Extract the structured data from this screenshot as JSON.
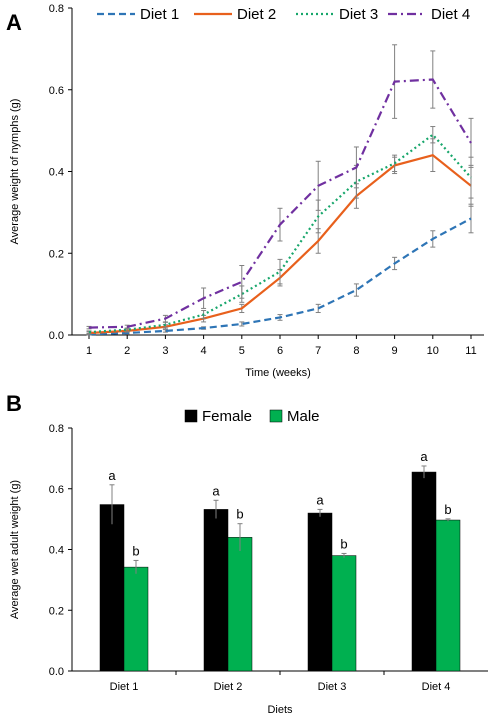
{
  "panels": {
    "a_label": "A",
    "b_label": "B"
  },
  "chart_data": [
    {
      "type": "line",
      "panel": "A",
      "xlabel": "Time (weeks)",
      "ylabel": "Average weight of nymphs (g)",
      "x": [
        1,
        2,
        3,
        4,
        5,
        6,
        7,
        8,
        9,
        10,
        11
      ],
      "xlim": [
        1,
        11
      ],
      "ylim": [
        0,
        0.8
      ],
      "yticks": [
        "0.0",
        "0.2",
        "0.4",
        "0.6",
        "0.8"
      ],
      "grid": false,
      "legend": "top",
      "series": [
        {
          "name": "Diet 1",
          "color": "#2E75B6",
          "style": "dashed",
          "values": [
            0.002,
            0.005,
            0.01,
            0.017,
            0.027,
            0.043,
            0.065,
            0.11,
            0.175,
            0.235,
            0.285
          ],
          "errors": [
            0.002,
            0.002,
            0.003,
            0.003,
            0.005,
            0.007,
            0.01,
            0.015,
            0.015,
            0.02,
            0.035
          ]
        },
        {
          "name": "Diet 2",
          "color": "#E8601C",
          "style": "solid",
          "values": [
            0.005,
            0.01,
            0.02,
            0.04,
            0.065,
            0.14,
            0.23,
            0.34,
            0.415,
            0.44,
            0.365
          ],
          "errors": [
            0.003,
            0.003,
            0.005,
            0.008,
            0.01,
            0.02,
            0.03,
            0.03,
            0.02,
            0.04,
            0.05
          ]
        },
        {
          "name": "Diet 3",
          "color": "#17A66B",
          "style": "dotted",
          "values": [
            0.007,
            0.013,
            0.025,
            0.05,
            0.1,
            0.155,
            0.29,
            0.375,
            0.42,
            0.49,
            0.385
          ],
          "errors": [
            0.003,
            0.004,
            0.006,
            0.01,
            0.02,
            0.03,
            0.04,
            0.04,
            0.02,
            0.02,
            0.05
          ]
        },
        {
          "name": "Diet 4",
          "color": "#7030A0",
          "style": "dashdot",
          "values": [
            0.018,
            0.02,
            0.04,
            0.09,
            0.13,
            0.27,
            0.365,
            0.41,
            0.62,
            0.625,
            0.47
          ],
          "errors": [
            0.003,
            0.004,
            0.008,
            0.025,
            0.04,
            0.04,
            0.06,
            0.05,
            0.09,
            0.07,
            0.06
          ]
        }
      ]
    },
    {
      "type": "bar",
      "panel": "B",
      "categories": [
        "Diet 1",
        "Diet 2",
        "Diet 3",
        "Diet 4"
      ],
      "xlabel": "Diets",
      "ylabel": "Average wet adult weight (g)",
      "ylim": [
        0,
        0.8
      ],
      "yticks": [
        "0.0",
        "0.2",
        "0.4",
        "0.6",
        "0.8"
      ],
      "grid": false,
      "legend": "top",
      "series": [
        {
          "name": "Female",
          "color": "#000000",
          "values": [
            0.548,
            0.532,
            0.52,
            0.655
          ],
          "errors": [
            0.065,
            0.03,
            0.012,
            0.02
          ],
          "labels": [
            "a",
            "a",
            "a",
            "a"
          ]
        },
        {
          "name": "Male",
          "color": "#00B050",
          "values": [
            0.342,
            0.44,
            0.38,
            0.497
          ],
          "errors": [
            0.022,
            0.045,
            0.007,
            0.004
          ],
          "labels": [
            "b",
            "b",
            "b",
            "b"
          ]
        }
      ]
    }
  ]
}
